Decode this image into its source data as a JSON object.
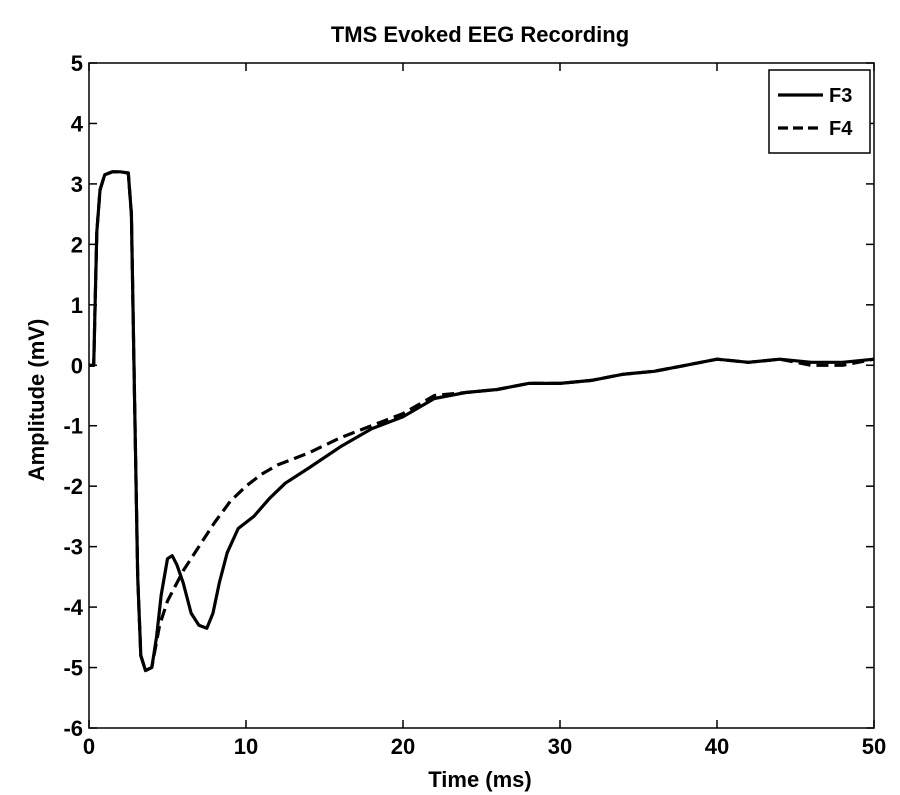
{
  "chart_data": {
    "type": "line",
    "title": "TMS Evoked EEG Recording",
    "xlabel": "Time (ms)",
    "ylabel": "Amplitude (mV)",
    "xlim": [
      0,
      50
    ],
    "ylim": [
      -6,
      5
    ],
    "xticks": [
      "0",
      "10",
      "20",
      "30",
      "40",
      "50"
    ],
    "yticks": [
      "5",
      "4",
      "3",
      "2",
      "1",
      "0",
      "-1",
      "-2",
      "-3",
      "-4",
      "-5",
      "-6"
    ],
    "grid": false,
    "legend_position": "top-right",
    "series": [
      {
        "name": "F3",
        "style": "solid",
        "color": "#000000",
        "x": [
          0,
          0.3,
          0.5,
          0.7,
          1.0,
          1.5,
          2.0,
          2.5,
          2.7,
          2.9,
          3.1,
          3.3,
          3.6,
          4.0,
          4.3,
          4.6,
          5.0,
          5.3,
          5.6,
          6.0,
          6.5,
          7.0,
          7.5,
          7.9,
          8.3,
          8.8,
          9.5,
          10.5,
          11.5,
          12.5,
          14.0,
          16.0,
          18.0,
          20.0,
          22.0,
          24.0,
          26.0,
          28.0,
          30.0,
          32.0,
          34.0,
          36.0,
          38.0,
          40.0,
          42.0,
          44.0,
          46.0,
          48.0,
          50.0
        ],
        "y": [
          0,
          0,
          2.2,
          2.9,
          3.15,
          3.2,
          3.2,
          3.18,
          2.5,
          -0.5,
          -3.5,
          -4.8,
          -5.05,
          -5.0,
          -4.5,
          -3.8,
          -3.2,
          -3.15,
          -3.3,
          -3.6,
          -4.1,
          -4.3,
          -4.35,
          -4.1,
          -3.6,
          -3.1,
          -2.7,
          -2.5,
          -2.2,
          -1.95,
          -1.7,
          -1.35,
          -1.05,
          -0.85,
          -0.55,
          -0.45,
          -0.4,
          -0.3,
          -0.3,
          -0.25,
          -0.15,
          -0.1,
          0.0,
          0.1,
          0.05,
          0.1,
          0.05,
          0.05,
          0.1
        ]
      },
      {
        "name": "F4",
        "style": "dashed",
        "color": "#000000",
        "x": [
          0,
          0.3,
          0.5,
          0.7,
          1.0,
          1.5,
          2.0,
          2.5,
          2.7,
          2.9,
          3.1,
          3.3,
          3.6,
          4.0,
          4.5,
          5.0,
          6.0,
          7.0,
          8.0,
          9.0,
          10.0,
          11.0,
          12.0,
          14.0,
          16.0,
          18.0,
          20.0,
          22.0,
          24.0,
          26.0,
          28.0,
          30.0,
          32.0,
          34.0,
          36.0,
          38.0,
          40.0,
          42.0,
          44.0,
          46.0,
          48.0,
          50.0
        ],
        "y": [
          0,
          0,
          2.2,
          2.9,
          3.15,
          3.2,
          3.2,
          3.18,
          2.5,
          -0.5,
          -3.5,
          -4.8,
          -5.05,
          -5.0,
          -4.3,
          -3.9,
          -3.4,
          -3.0,
          -2.6,
          -2.25,
          -2.0,
          -1.8,
          -1.65,
          -1.45,
          -1.2,
          -1.0,
          -0.8,
          -0.5,
          -0.45,
          -0.4,
          -0.3,
          -0.3,
          -0.25,
          -0.15,
          -0.1,
          0.0,
          0.1,
          0.05,
          0.1,
          0.0,
          0.0,
          0.1
        ]
      }
    ]
  }
}
